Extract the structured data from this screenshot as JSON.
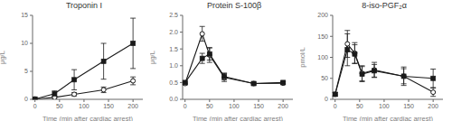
{
  "chart_data": [
    {
      "type": "line",
      "title": "Troponin I",
      "xlabel": "Time (min after cardiac arrest)",
      "ylabel": "μg/L",
      "xlim": [
        -5,
        220
      ],
      "ylim": [
        0,
        15
      ],
      "xticks": [
        0,
        50,
        100,
        150,
        200
      ],
      "yticks": [
        0,
        5,
        10,
        15
      ],
      "x": [
        0,
        40,
        80,
        140,
        200
      ],
      "series": [
        {
          "color": "#1a1a1a",
          "marker": "circle",
          "values": [
            0.05,
            0.35,
            0.9,
            1.7,
            3.3
          ],
          "errors": [
            0.05,
            0.2,
            0.3,
            0.5,
            0.7
          ]
        },
        {
          "color": "#1a1a1a",
          "marker": "square",
          "values": [
            0.05,
            1.0,
            3.5,
            6.8,
            10.0
          ],
          "errors": [
            0.05,
            0.5,
            1.8,
            3.2,
            4.5
          ]
        }
      ]
    },
    {
      "type": "line",
      "title": "Protein S-100β",
      "xlabel": "Time (min after cardiac arrest)",
      "ylabel": "μg/L",
      "xlim": [
        -5,
        220
      ],
      "ylim": [
        0,
        2.5
      ],
      "xticks": [
        0,
        50,
        100,
        150,
        200
      ],
      "yticks": [
        {
          "value": 0,
          "label": "0.0"
        },
        0.5,
        {
          "value": 1,
          "label": "1.0"
        },
        1.5,
        {
          "value": 2,
          "label": "2.0"
        },
        2.5
      ],
      "x": [
        0,
        35,
        50,
        80,
        140,
        200
      ],
      "series": [
        {
          "color": "#1a1a1a",
          "marker": "circle",
          "values": [
            0.47,
            1.95,
            1.32,
            0.65,
            0.47,
            0.48
          ],
          "errors": [
            0.04,
            0.22,
            0.22,
            0.12,
            0.04,
            0.04
          ]
        },
        {
          "color": "#1a1a1a",
          "marker": "square",
          "values": [
            0.5,
            1.22,
            1.35,
            0.68,
            0.47,
            0.5
          ],
          "errors": [
            0.04,
            0.15,
            0.18,
            0.1,
            0.04,
            0.04
          ]
        }
      ]
    },
    {
      "type": "line",
      "title": "8-iso-PGF₂α",
      "xlabel": "Time (min after cardiac arrest)",
      "ylabel": "pmol/L",
      "xlim": [
        -5,
        220
      ],
      "ylim": [
        0,
        200
      ],
      "xticks": [
        0,
        50,
        100,
        150,
        200
      ],
      "yticks": [
        0,
        50,
        100,
        150,
        200
      ],
      "x": [
        0,
        25,
        40,
        55,
        80,
        140,
        200
      ],
      "series": [
        {
          "color": "#1a1a1a",
          "marker": "circle",
          "values": [
            12,
            132,
            110,
            62,
            70,
            55,
            17
          ],
          "errors": [
            4,
            32,
            25,
            18,
            18,
            22,
            10
          ]
        },
        {
          "color": "#1a1a1a",
          "marker": "square",
          "values": [
            12,
            118,
            108,
            60,
            68,
            55,
            50
          ],
          "errors": [
            4,
            38,
            22,
            18,
            15,
            18,
            22
          ]
        }
      ]
    }
  ]
}
